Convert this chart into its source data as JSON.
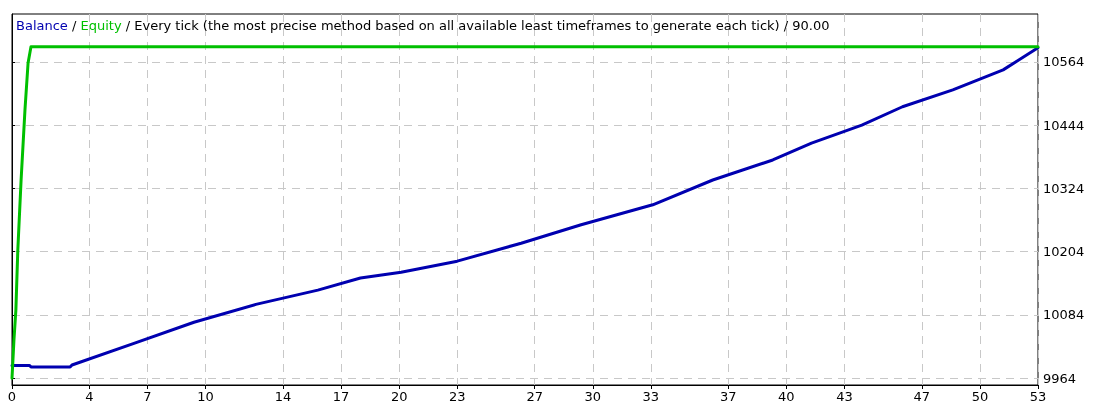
{
  "chart_data": {
    "type": "line",
    "title": "Every tick (the most precise method based on all available least timeframes to generate each tick) / 90.00",
    "annotations": [
      "/",
      "/"
    ],
    "grid": true,
    "marker": "none",
    "line_style": "solid",
    "xlim": [
      0,
      53
    ],
    "xticks": [
      0,
      4,
      7,
      10,
      14,
      17,
      20,
      23,
      27,
      30,
      33,
      37,
      40,
      43,
      47,
      50,
      53
    ],
    "ylim": [
      9951,
      10655
    ],
    "yticks": [
      9964,
      10084,
      10204,
      10324,
      10444,
      10564
    ],
    "series": [
      {
        "name": "Balance",
        "color": "#0000b0",
        "x": [
          0,
          0.9,
          1,
          3,
          3.1,
          6.3,
          9.4,
          12.6,
          15.8,
          18,
          20.1,
          23,
          26.3,
          29.4,
          33.1,
          36.2,
          39.3,
          41.3,
          43.9,
          46,
          48.6,
          51.2,
          53
        ],
        "values": [
          9988,
          9988,
          9985,
          9985,
          9989,
          10030,
          10070,
          10104,
          10131,
          10154,
          10165,
          10186,
          10220,
          10255,
          10293,
          10340,
          10378,
          10410,
          10444,
          10479,
          10511,
          10549,
          10591
        ]
      },
      {
        "name": "Equity",
        "color": "#00c000",
        "x": [
          0,
          0.1,
          0.2,
          0.3,
          0.47,
          0.67,
          0.83,
          0.98,
          53
        ],
        "values": [
          9964,
          10036,
          10093,
          10207,
          10340,
          10473,
          10562,
          10593,
          10593
        ]
      }
    ]
  }
}
